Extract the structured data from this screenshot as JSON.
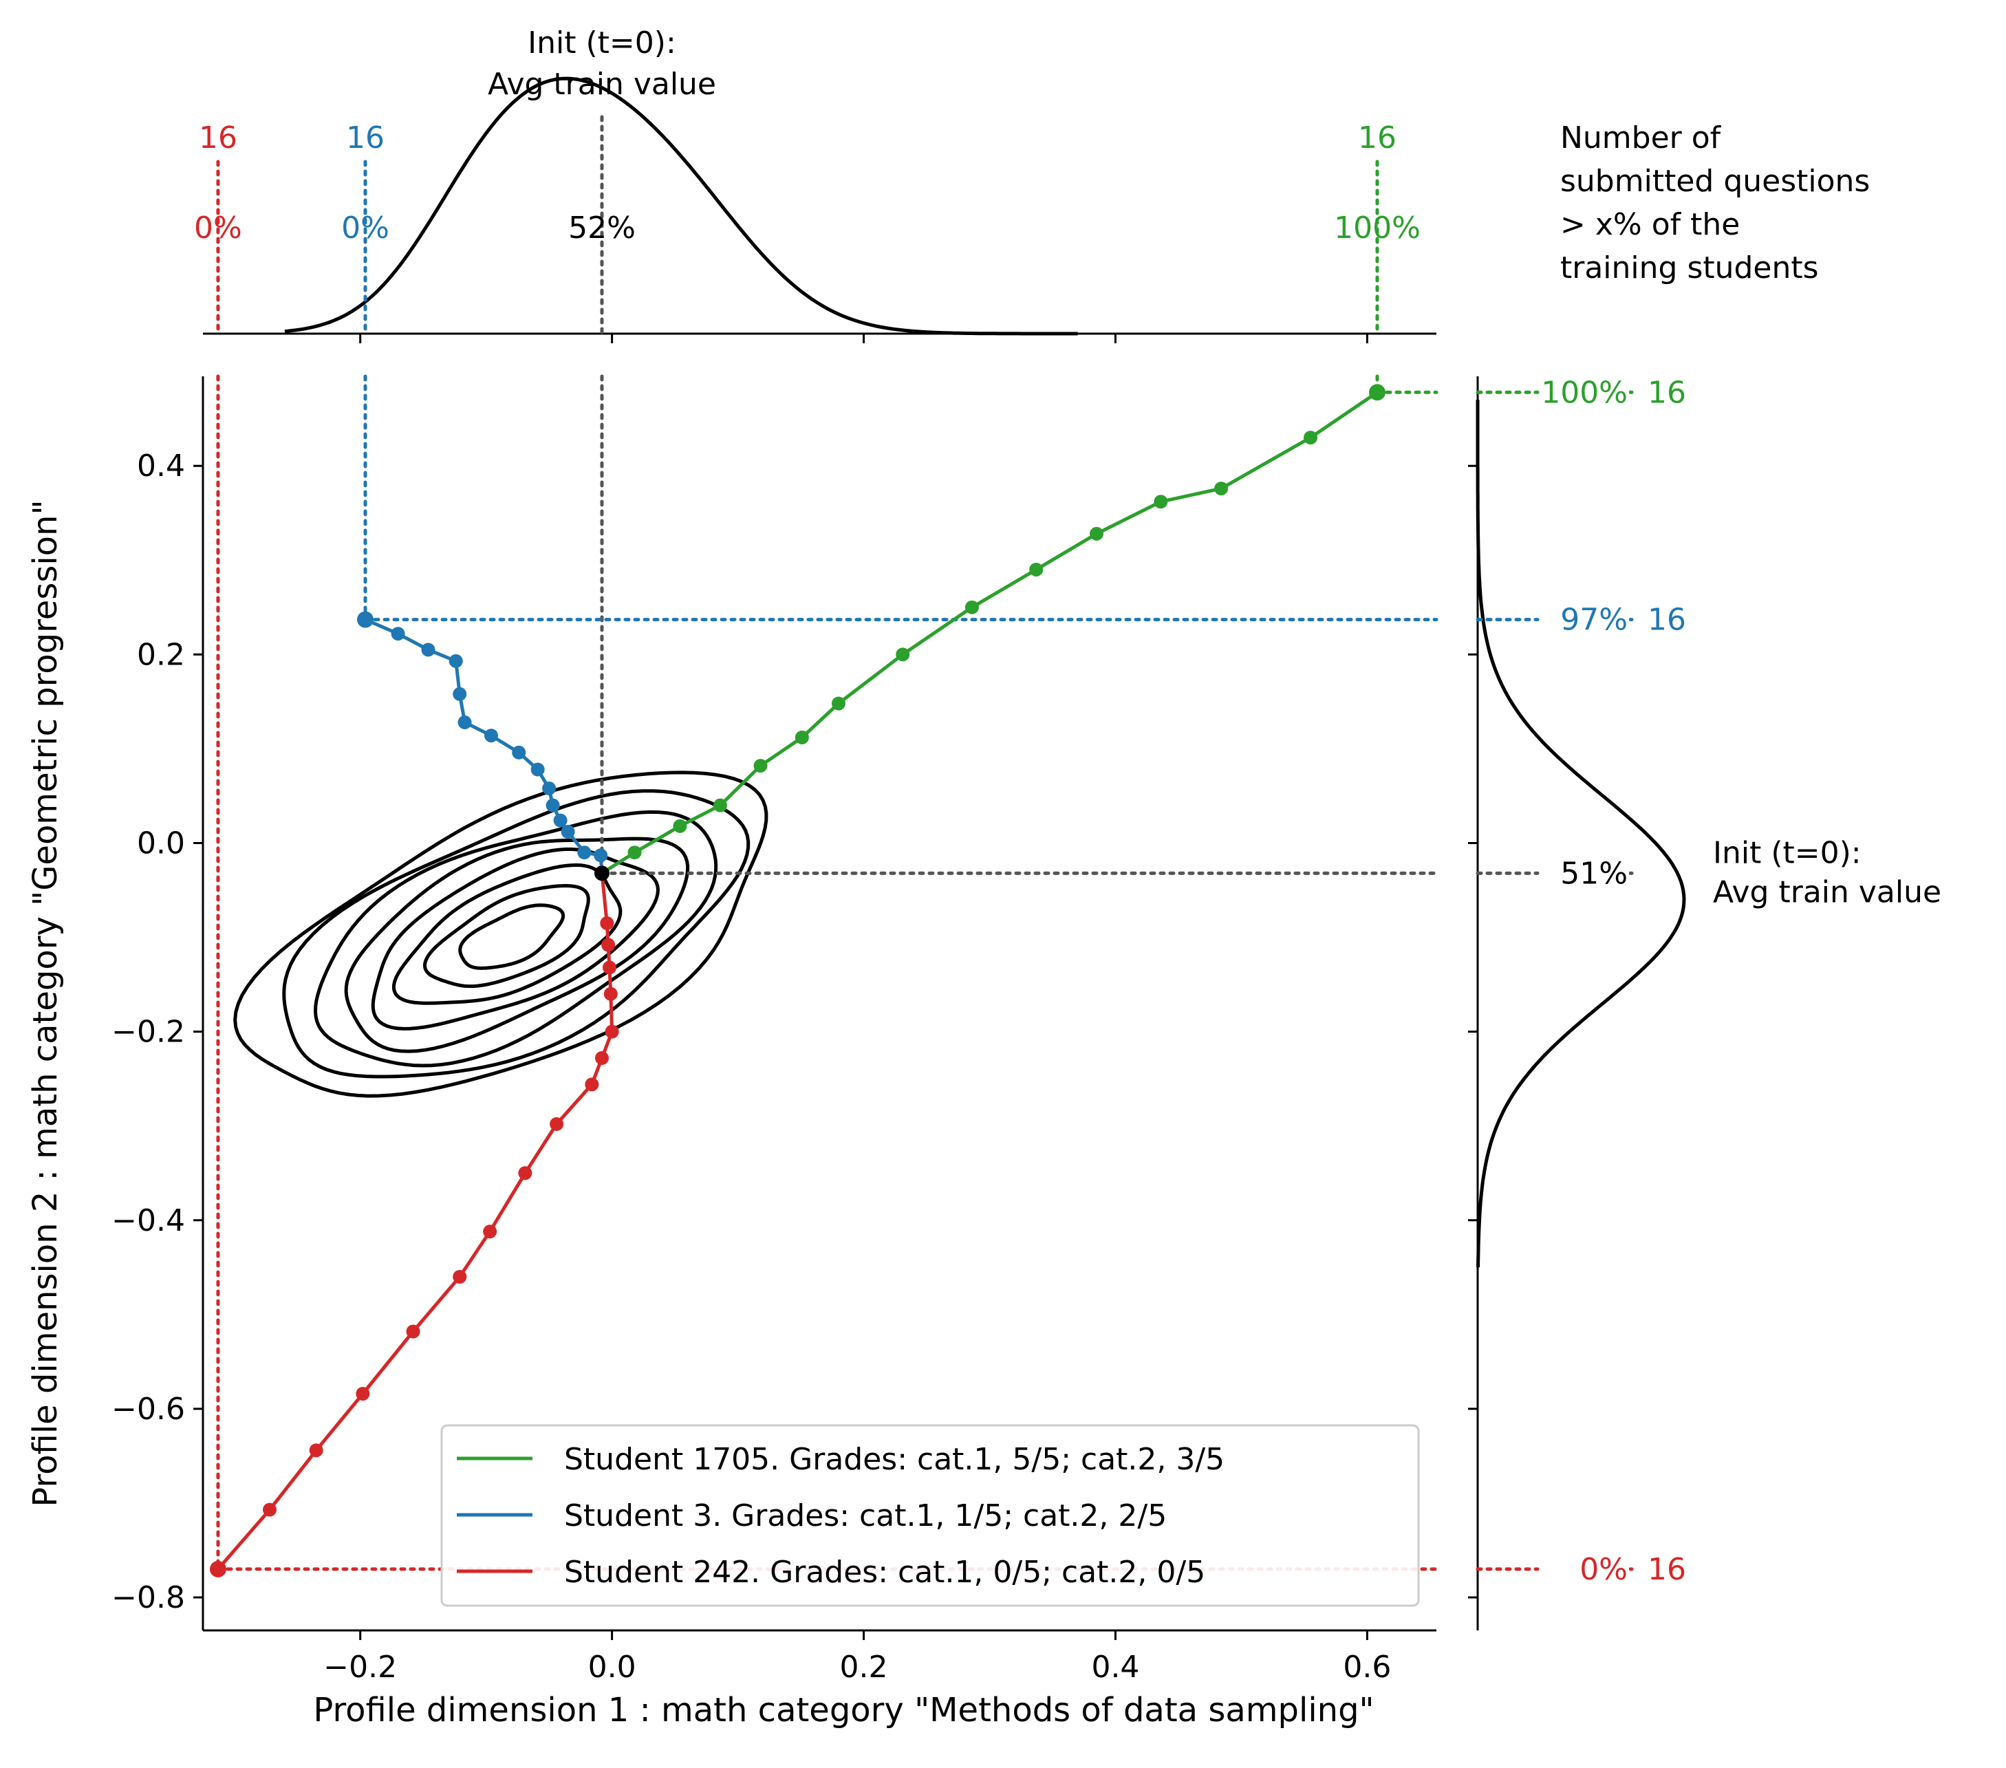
{
  "chart_data": {
    "type": "line",
    "xlabel": "Profile dimension 1 : math category \"Methods of data sampling\"",
    "ylabel": "Profile dimension 2 : math category \"Geometric progression\"",
    "xlim": [
      -0.325,
      0.655
    ],
    "ylim": [
      -0.835,
      0.495
    ],
    "x_ticks": [
      -0.2,
      0.0,
      0.2,
      0.4,
      0.6
    ],
    "x_tick_labels": [
      "−0.2",
      "0.0",
      "0.2",
      "0.4",
      "0.6"
    ],
    "y_ticks": [
      0.4,
      0.2,
      0.0,
      -0.2,
      -0.4,
      -0.6,
      -0.8
    ],
    "y_tick_labels": [
      "0.4",
      "0.2",
      "0.0",
      "−0.2",
      "−0.4",
      "−0.6",
      "−0.8"
    ],
    "grid": false,
    "legend_position": "lower-right",
    "init_point": {
      "x": -0.008,
      "y": -0.032
    },
    "series": [
      {
        "name": "Student 1705. Grades: cat.1, 5/5; cat.2, 3/5",
        "color": "#2ca02c",
        "x": [
          -0.008,
          0.018,
          0.054,
          0.086,
          0.118,
          0.151,
          0.18,
          0.231,
          0.286,
          0.337,
          0.385,
          0.436,
          0.484,
          0.555,
          0.608
        ],
        "y": [
          -0.032,
          -0.01,
          0.018,
          0.04,
          0.082,
          0.112,
          0.148,
          0.2,
          0.25,
          0.29,
          0.328,
          0.362,
          0.376,
          0.43,
          0.478
        ]
      },
      {
        "name": "Student 3. Grades: cat.1, 1/5; cat.2, 2/5",
        "color": "#1f77b4",
        "x": [
          -0.008,
          -0.009,
          -0.022,
          -0.035,
          -0.041,
          -0.047,
          -0.05,
          -0.059,
          -0.074,
          -0.096,
          -0.117,
          -0.121,
          -0.124,
          -0.146,
          -0.17,
          -0.196
        ],
        "y": [
          -0.032,
          -0.013,
          -0.01,
          0.012,
          0.024,
          0.04,
          0.058,
          0.078,
          0.096,
          0.114,
          0.128,
          0.158,
          0.193,
          0.205,
          0.222,
          0.237
        ]
      },
      {
        "name": "Student 242. Grades: cat.1, 0/5; cat.2, 0/5",
        "color": "#d62728",
        "x": [
          -0.008,
          -0.004,
          -0.003,
          -0.002,
          -0.001,
          0.0,
          -0.008,
          -0.016,
          -0.044,
          -0.069,
          -0.097,
          -0.121,
          -0.158,
          -0.198,
          -0.235,
          -0.272,
          -0.313
        ],
        "y": [
          -0.032,
          -0.085,
          -0.108,
          -0.132,
          -0.16,
          -0.2,
          -0.228,
          -0.256,
          -0.298,
          -0.35,
          -0.412,
          -0.46,
          -0.518,
          -0.584,
          -0.644,
          -0.707,
          -0.77
        ]
      }
    ],
    "top_marginal": {
      "annotation_title": "Init (t=0):\nAvg train value",
      "markers": [
        {
          "series": 2,
          "count": "16",
          "percent": "0%",
          "color": "#d62728",
          "x": -0.313
        },
        {
          "series": 1,
          "count": "16",
          "percent": "0%",
          "color": "#1f77b4",
          "x": -0.196
        },
        {
          "series": -1,
          "count": "",
          "percent": "52%",
          "color": "#555555",
          "x": -0.008
        },
        {
          "series": 0,
          "count": "16",
          "percent": "100%",
          "color": "#2ca02c",
          "x": 0.608
        }
      ],
      "note": "Number of\nsubmitted questions\n> x% of the\ntraining students"
    },
    "right_marginal": {
      "annotation_title": "Init (t=0):\nAvg train value",
      "markers": [
        {
          "series": 0,
          "count": "16",
          "percent": "100%",
          "color": "#2ca02c",
          "y": 0.478
        },
        {
          "series": 1,
          "count": "16",
          "percent": "97%",
          "color": "#1f77b4",
          "y": 0.237
        },
        {
          "series": -1,
          "count": "",
          "percent": "51%",
          "color": "#555555",
          "y": -0.032
        },
        {
          "series": 2,
          "count": "16",
          "percent": "0%",
          "color": "#d62728",
          "y": -0.77
        }
      ]
    },
    "contour_levels": 8
  }
}
